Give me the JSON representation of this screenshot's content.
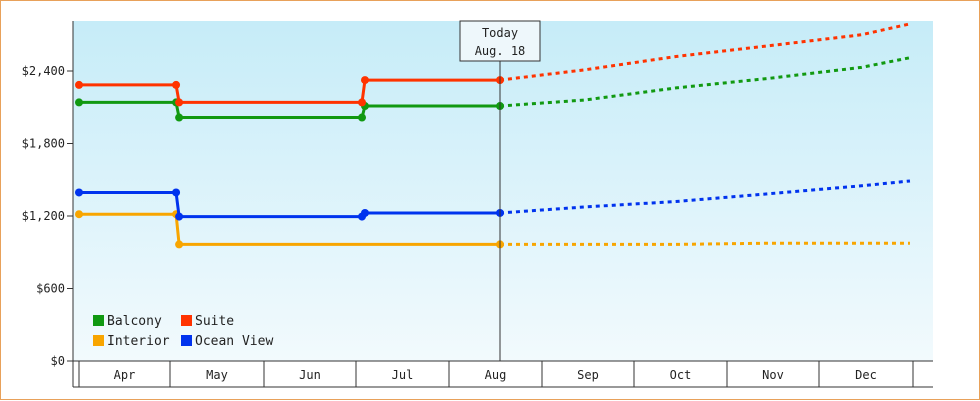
{
  "chart_data": {
    "type": "line",
    "step": true,
    "x_tick_labels": [
      "Apr",
      "May",
      "Jun",
      "Jul",
      "Aug",
      "Sep",
      "Oct",
      "Nov",
      "Dec"
    ],
    "y_ticks": [
      0,
      600,
      1200,
      1800,
      2400
    ],
    "y_tick_labels": [
      "$0",
      "$600",
      "$1,200",
      "$1,800",
      "$2,400"
    ],
    "ylim": [
      0,
      2400
    ],
    "today_marker": {
      "line1": "Today",
      "line2": "Aug. 18",
      "x": "Aug 18"
    },
    "legend_position": "bottom-left",
    "series": [
      {
        "name": "Balcony",
        "color": "#119911",
        "observed": [
          [
            "Apr 1",
            2140
          ],
          [
            "May 3",
            2140
          ],
          [
            "May 4",
            2015
          ],
          [
            "Jul 3",
            2015
          ],
          [
            "Jul 4",
            2110
          ],
          [
            "Aug 18",
            2110
          ]
        ],
        "forecast": [
          [
            "Aug 18",
            2110
          ],
          [
            "Sep 15",
            2160
          ],
          [
            "Oct 15",
            2260
          ],
          [
            "Nov 15",
            2340
          ],
          [
            "Dec 15",
            2430
          ],
          [
            "Dec 31",
            2510
          ]
        ]
      },
      {
        "name": "Suite",
        "color": "#ff3300",
        "observed": [
          [
            "Apr 1",
            2285
          ],
          [
            "May 3",
            2285
          ],
          [
            "May 4",
            2140
          ],
          [
            "Jul 3",
            2140
          ],
          [
            "Jul 4",
            2325
          ],
          [
            "Aug 18",
            2325
          ]
        ],
        "forecast": [
          [
            "Aug 18",
            2325
          ],
          [
            "Sep 15",
            2410
          ],
          [
            "Oct 15",
            2520
          ],
          [
            "Nov 15",
            2610
          ],
          [
            "Dec 15",
            2700
          ],
          [
            "Dec 31",
            2790
          ]
        ]
      },
      {
        "name": "Interior",
        "color": "#f8a500",
        "observed": [
          [
            "Apr 1",
            1215
          ],
          [
            "May 3",
            1215
          ],
          [
            "May 4",
            965
          ],
          [
            "Jul 3",
            965
          ],
          [
            "Aug 18",
            965
          ]
        ],
        "forecast": [
          [
            "Aug 18",
            965
          ],
          [
            "Sep 15",
            965
          ],
          [
            "Oct 15",
            965
          ],
          [
            "Nov 15",
            975
          ],
          [
            "Dec 15",
            975
          ],
          [
            "Dec 31",
            975
          ]
        ]
      },
      {
        "name": "Ocean View",
        "color": "#0033ee",
        "observed": [
          [
            "Apr 1",
            1395
          ],
          [
            "May 3",
            1395
          ],
          [
            "May 4",
            1195
          ],
          [
            "Jul 3",
            1195
          ],
          [
            "Jul 4",
            1225
          ],
          [
            "Aug 18",
            1225
          ]
        ],
        "forecast": [
          [
            "Aug 18",
            1225
          ],
          [
            "Sep 15",
            1275
          ],
          [
            "Oct 15",
            1320
          ],
          [
            "Nov 15",
            1385
          ],
          [
            "Dec 15",
            1450
          ],
          [
            "Dec 31",
            1490
          ]
        ]
      }
    ]
  }
}
